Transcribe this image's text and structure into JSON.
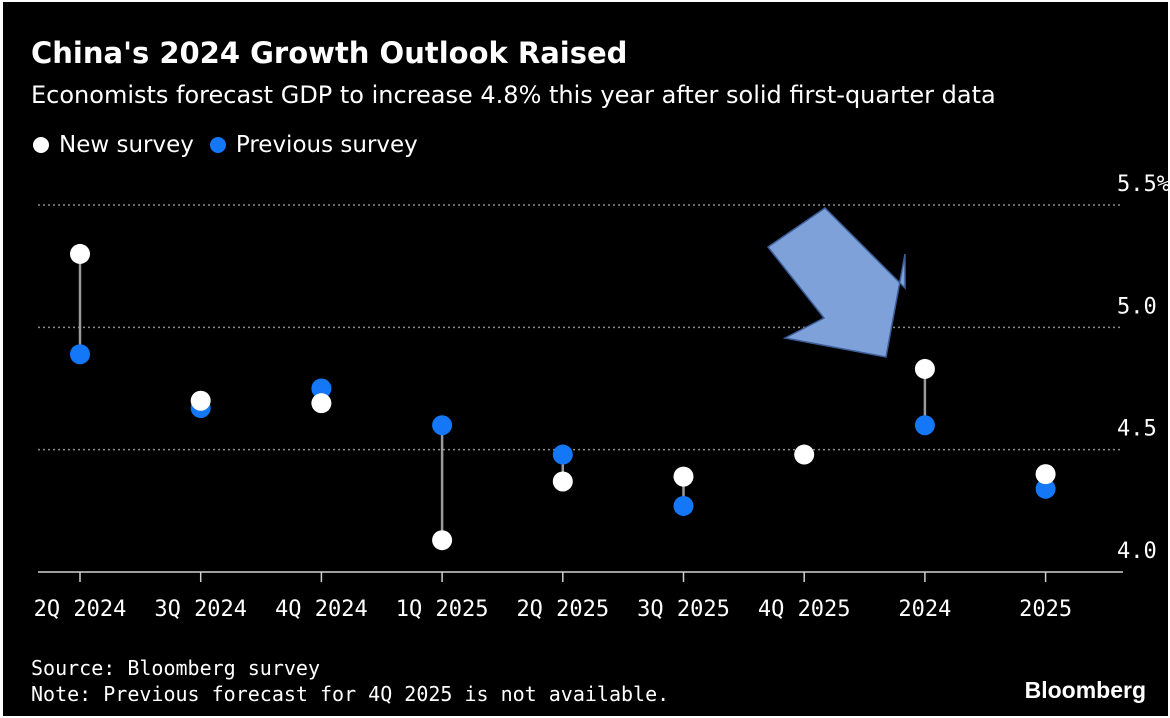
{
  "title": "China's 2024 Growth Outlook Raised",
  "subtitle": "Economists forecast GDP to increase 4.8% this year after solid first-quarter data",
  "legend": {
    "new_label": "New survey",
    "previous_label": "Previous survey"
  },
  "colors": {
    "background": "#000000",
    "new_survey": "#ffffff",
    "previous_survey": "#1477f8",
    "arrow_fill": "#7da1d8",
    "arrow_stroke": "#3d5e99",
    "gridline": "#8a8a8a",
    "connector": "#9a9a9a",
    "text": "#ffffff"
  },
  "chart_data": {
    "type": "scatter",
    "title": "China's 2024 Growth Outlook Raised",
    "subtitle": "Economists forecast GDP to increase 4.8% this year after solid first-quarter data",
    "categories": [
      "2Q 2024",
      "3Q 2024",
      "4Q 2024",
      "1Q 2025",
      "2Q 2025",
      "3Q 2025",
      "4Q 2025",
      "2024",
      "2025"
    ],
    "series": [
      {
        "name": "New survey",
        "values": [
          5.3,
          4.7,
          4.69,
          4.13,
          4.37,
          4.39,
          4.48,
          4.83,
          4.4
        ]
      },
      {
        "name": "Previous survey",
        "values": [
          4.89,
          4.67,
          4.75,
          4.6,
          4.48,
          4.27,
          null,
          4.6,
          4.34
        ]
      }
    ],
    "ylim": [
      4.0,
      5.5
    ],
    "yticks": [
      4.0,
      4.5,
      5.0,
      5.5
    ],
    "ytick_labels": [
      "4.0",
      "4.5",
      "5.0",
      "5.5%"
    ],
    "yaxis_side": "right",
    "grid": true,
    "legend_position": "top-left",
    "annotation": "blue arrow pointing to 2024 forecast"
  },
  "footer": {
    "source": "Source: Bloomberg survey",
    "note": "Note: Previous forecast for 4Q 2025 is not available."
  },
  "brand": "Bloomberg"
}
